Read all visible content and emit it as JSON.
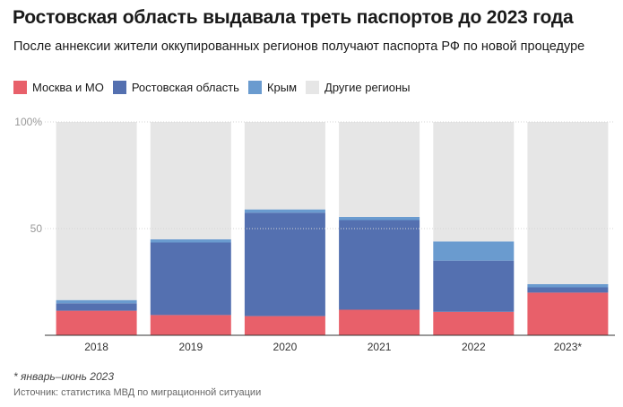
{
  "title": "Ростовская область выдавала треть паспортов до 2023 года",
  "subtitle": "После аннексии жители оккупированных регионов получают паспорта РФ по новой процедуре",
  "note": "* январь–июнь 2023",
  "source": "Источник: статистика МВД по миграционной ситуации",
  "chart_data": {
    "type": "bar",
    "stacked": true,
    "categories": [
      "2018",
      "2019",
      "2020",
      "2021",
      "2022",
      "2023*"
    ],
    "series": [
      {
        "name": "Москва и МО",
        "color": "#e8606a",
        "values": [
          11.5,
          9.5,
          9,
          12,
          11,
          20
        ]
      },
      {
        "name": "Ростовская область",
        "color": "#5470b0",
        "values": [
          3.5,
          34,
          48.5,
          42,
          24,
          2.5
        ]
      },
      {
        "name": "Крым",
        "color": "#6a9bcf",
        "values": [
          1.5,
          1.5,
          1.5,
          1.5,
          9,
          1.5
        ]
      },
      {
        "name": "Другие регионы",
        "color": "#e6e6e6",
        "values": [
          83.5,
          55,
          41,
          44.5,
          56,
          76
        ]
      }
    ],
    "y_ticks": [
      {
        "value": 50,
        "label": "50"
      },
      {
        "value": 100,
        "label": "100%"
      }
    ],
    "ylim": [
      0,
      100
    ],
    "grid": true,
    "legend_position": "top-left"
  }
}
